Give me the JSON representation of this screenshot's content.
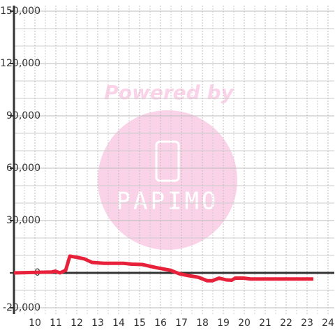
{
  "chart_data": {
    "type": "line",
    "watermark_top": "Powered by",
    "watermark_label": "PAPIMO",
    "xlim": [
      9,
      24.3
    ],
    "ylim": [
      -23600,
      153200
    ],
    "xticks": [
      10,
      11,
      12,
      13,
      14,
      15,
      16,
      17,
      18,
      19,
      20,
      21,
      22,
      23,
      24
    ],
    "xminor": [
      9.5,
      10.5,
      11.5,
      12.5,
      13.5,
      14.5,
      15.5,
      16.5,
      17.5,
      18.5,
      19.5,
      20.5,
      21.5,
      22.5,
      23.5
    ],
    "yticks": [
      {
        "value": -20000,
        "label": "-20,000"
      },
      0,
      {
        "value": 30000,
        "label": "30,000"
      },
      {
        "value": 60000,
        "label": "60,000"
      },
      {
        "value": 90000,
        "label": "90,000"
      },
      {
        "value": 120000,
        "label": "120,000"
      },
      {
        "value": 150000,
        "label": "150,000"
      }
    ],
    "yminor": [
      -10000,
      10000,
      20000,
      40000,
      50000,
      70000,
      80000,
      100000,
      110000,
      130000,
      140000
    ],
    "grid": true,
    "series": [
      {
        "color": "#e8213a",
        "x": [
          9.0,
          10.8,
          10.97,
          11.2,
          11.47,
          11.67,
          11.97,
          12.37,
          12.73,
          13.3,
          14.23,
          14.63,
          15.13,
          15.8,
          16.47,
          16.9,
          17.3,
          17.8,
          18.23,
          18.47,
          18.8,
          19.13,
          19.4,
          19.57,
          19.97,
          20.3,
          23.3
        ],
        "values": [
          0,
          500,
          1000,
          0,
          1500,
          9600,
          9000,
          8000,
          6000,
          5500,
          5500,
          5000,
          4800,
          3000,
          1500,
          -500,
          -1500,
          -2500,
          -4500,
          -4500,
          -3000,
          -4000,
          -4200,
          -3000,
          -3000,
          -3500,
          -3500
        ]
      }
    ]
  }
}
